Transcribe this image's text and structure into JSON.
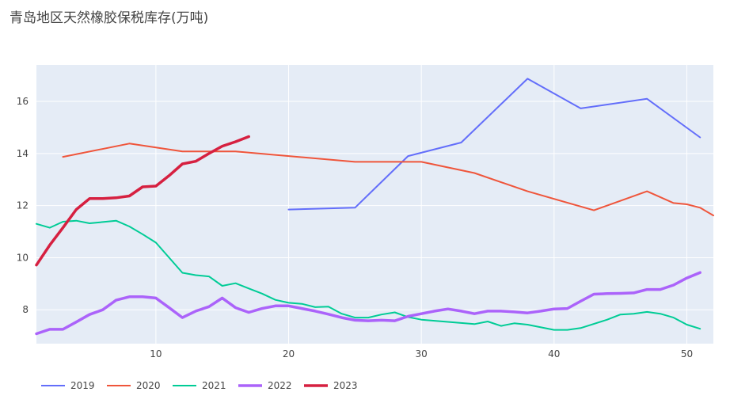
{
  "chart_data": {
    "type": "line",
    "title": "青岛地区天然橡胶保税库存(万吨)",
    "xlabel": "",
    "ylabel": "",
    "xlim": [
      1,
      52
    ],
    "ylim": [
      6.7,
      17.4
    ],
    "x_ticks": [
      10,
      20,
      30,
      40,
      50
    ],
    "y_ticks": [
      8,
      10,
      12,
      14,
      16
    ],
    "grid": true,
    "legend_position": "bottom-left",
    "series": [
      {
        "name": "2019",
        "color": "#636efa",
        "width": 2,
        "points": [
          [
            20,
            11.85
          ],
          [
            25,
            11.92
          ],
          [
            29,
            13.9
          ],
          [
            33,
            14.42
          ],
          [
            38,
            16.87
          ],
          [
            42,
            15.73
          ],
          [
            47,
            16.1
          ],
          [
            51,
            14.62
          ]
        ]
      },
      {
        "name": "2020",
        "color": "#ef553b",
        "width": 2,
        "points": [
          [
            3,
            13.87
          ],
          [
            8,
            14.38
          ],
          [
            12,
            14.08
          ],
          [
            16,
            14.08
          ],
          [
            25,
            13.68
          ],
          [
            30,
            13.68
          ],
          [
            34,
            13.25
          ],
          [
            38,
            12.55
          ],
          [
            43,
            11.82
          ],
          [
            47,
            12.55
          ],
          [
            49,
            12.1
          ],
          [
            50,
            12.05
          ],
          [
            51,
            11.92
          ],
          [
            52,
            11.62
          ]
        ]
      },
      {
        "name": "2021",
        "color": "#00cc96",
        "width": 2,
        "points": [
          [
            1,
            11.3
          ],
          [
            2,
            11.15
          ],
          [
            3,
            11.38
          ],
          [
            4,
            11.42
          ],
          [
            5,
            11.32
          ],
          [
            6,
            11.37
          ],
          [
            7,
            11.42
          ],
          [
            8,
            11.2
          ],
          [
            9,
            10.9
          ],
          [
            10,
            10.58
          ],
          [
            11,
            10.0
          ],
          [
            12,
            9.42
          ],
          [
            13,
            9.33
          ],
          [
            14,
            9.28
          ],
          [
            15,
            8.92
          ],
          [
            16,
            9.02
          ],
          [
            17,
            8.82
          ],
          [
            18,
            8.62
          ],
          [
            19,
            8.38
          ],
          [
            20,
            8.27
          ],
          [
            21,
            8.23
          ],
          [
            22,
            8.1
          ],
          [
            23,
            8.12
          ],
          [
            24,
            7.85
          ],
          [
            25,
            7.7
          ],
          [
            26,
            7.7
          ],
          [
            27,
            7.82
          ],
          [
            28,
            7.9
          ],
          [
            29,
            7.72
          ],
          [
            30,
            7.62
          ],
          [
            34,
            7.45
          ],
          [
            35,
            7.55
          ],
          [
            36,
            7.38
          ],
          [
            37,
            7.48
          ],
          [
            38,
            7.43
          ],
          [
            40,
            7.23
          ],
          [
            41,
            7.23
          ],
          [
            42,
            7.3
          ],
          [
            44,
            7.62
          ],
          [
            45,
            7.82
          ],
          [
            46,
            7.85
          ],
          [
            47,
            7.92
          ],
          [
            48,
            7.85
          ],
          [
            49,
            7.7
          ],
          [
            50,
            7.43
          ],
          [
            51,
            7.27
          ]
        ]
      },
      {
        "name": "2022",
        "color": "#ab63fa",
        "width": 3.5,
        "points": [
          [
            1,
            7.08
          ],
          [
            2,
            7.25
          ],
          [
            3,
            7.25
          ],
          [
            4,
            7.53
          ],
          [
            5,
            7.82
          ],
          [
            6,
            8.0
          ],
          [
            7,
            8.37
          ],
          [
            8,
            8.5
          ],
          [
            9,
            8.5
          ],
          [
            10,
            8.45
          ],
          [
            11,
            8.08
          ],
          [
            12,
            7.7
          ],
          [
            13,
            7.95
          ],
          [
            14,
            8.12
          ],
          [
            15,
            8.45
          ],
          [
            16,
            8.08
          ],
          [
            17,
            7.9
          ],
          [
            18,
            8.05
          ],
          [
            19,
            8.15
          ],
          [
            20,
            8.15
          ],
          [
            21,
            8.05
          ],
          [
            22,
            7.95
          ],
          [
            23,
            7.83
          ],
          [
            24,
            7.7
          ],
          [
            25,
            7.6
          ],
          [
            26,
            7.58
          ],
          [
            27,
            7.6
          ],
          [
            28,
            7.58
          ],
          [
            29,
            7.75
          ],
          [
            30,
            7.85
          ],
          [
            31,
            7.95
          ],
          [
            32,
            8.03
          ],
          [
            33,
            7.95
          ],
          [
            34,
            7.85
          ],
          [
            35,
            7.95
          ],
          [
            36,
            7.95
          ],
          [
            37,
            7.92
          ],
          [
            38,
            7.88
          ],
          [
            39,
            7.95
          ],
          [
            40,
            8.03
          ],
          [
            41,
            8.05
          ],
          [
            42,
            8.33
          ],
          [
            43,
            8.6
          ],
          [
            44,
            8.62
          ],
          [
            45,
            8.63
          ],
          [
            46,
            8.65
          ],
          [
            47,
            8.78
          ],
          [
            48,
            8.78
          ],
          [
            49,
            8.95
          ],
          [
            50,
            9.22
          ],
          [
            51,
            9.43
          ]
        ]
      },
      {
        "name": "2023",
        "color": "#d62040",
        "width": 3.5,
        "points": [
          [
            1,
            9.72
          ],
          [
            2,
            10.48
          ],
          [
            3,
            11.15
          ],
          [
            4,
            11.85
          ],
          [
            5,
            12.27
          ],
          [
            6,
            12.27
          ],
          [
            7,
            12.3
          ],
          [
            8,
            12.37
          ],
          [
            9,
            12.72
          ],
          [
            10,
            12.75
          ],
          [
            11,
            13.15
          ],
          [
            12,
            13.6
          ],
          [
            13,
            13.7
          ],
          [
            14,
            14.0
          ],
          [
            15,
            14.28
          ],
          [
            16,
            14.45
          ],
          [
            17,
            14.65
          ]
        ]
      }
    ]
  }
}
